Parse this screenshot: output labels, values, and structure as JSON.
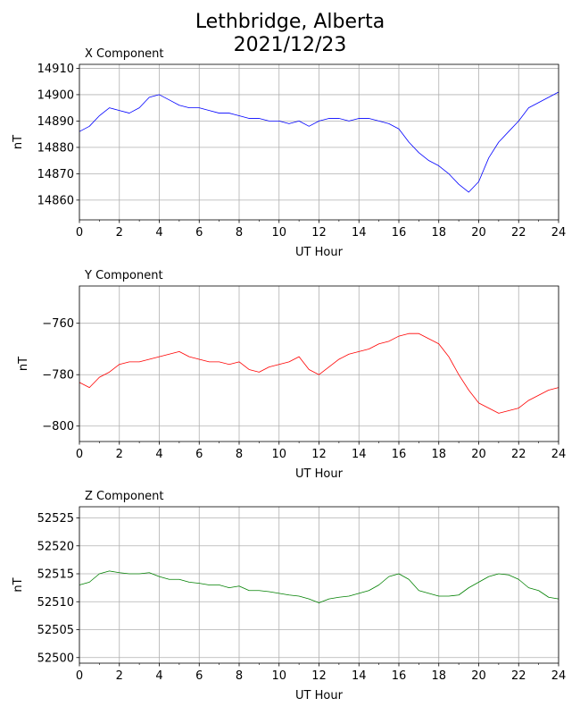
{
  "title_line1": "Lethbridge, Alberta",
  "title_line2": "2021/12/23",
  "chart_data": [
    {
      "type": "line",
      "title": "X Component",
      "xlabel": "UT Hour",
      "ylabel": "nT",
      "xlim": [
        0,
        24
      ],
      "ylim": [
        14852.5,
        14911.5
      ],
      "xticks": [
        0,
        2,
        4,
        6,
        8,
        10,
        12,
        14,
        16,
        18,
        20,
        22,
        24
      ],
      "yticks": [
        14860,
        14870,
        14880,
        14890,
        14900,
        14910
      ],
      "grid": true,
      "color": "#0000ff",
      "series": [
        {
          "x": [
            0,
            0.5,
            1,
            1.5,
            2,
            2.5,
            3,
            3.5,
            4,
            4.5,
            5,
            5.5,
            6,
            6.5,
            7,
            7.5,
            8,
            8.5,
            9,
            9.5,
            10,
            10.5,
            11,
            11.5,
            12,
            12.5,
            13,
            13.5,
            14,
            14.5,
            15,
            15.5,
            16,
            16.5,
            17,
            17.5,
            18,
            18.5,
            19,
            19.5,
            20,
            20.5,
            21,
            21.5,
            22,
            22.5,
            23,
            23.5,
            24
          ],
          "y": [
            14886,
            14888,
            14892,
            14895,
            14894,
            14893,
            14895,
            14899,
            14900,
            14898,
            14896,
            14895,
            14895,
            14894,
            14893,
            14893,
            14892,
            14891,
            14891,
            14890,
            14890,
            14889,
            14890,
            14888,
            14890,
            14891,
            14891,
            14890,
            14891,
            14891,
            14890,
            14889,
            14887,
            14882,
            14878,
            14875,
            14873,
            14870,
            14866,
            14863,
            14867,
            14876,
            14882,
            14886,
            14890,
            14895,
            14897,
            14899,
            14901
          ]
        }
      ]
    },
    {
      "type": "line",
      "title": "Y Component",
      "xlabel": "UT Hour",
      "ylabel": "nT",
      "xlim": [
        0,
        24
      ],
      "ylim": [
        -806,
        -745.5
      ],
      "xticks": [
        0,
        2,
        4,
        6,
        8,
        10,
        12,
        14,
        16,
        18,
        20,
        22,
        24
      ],
      "yticks": [
        -800,
        -780,
        -760
      ],
      "grid": true,
      "color": "#ff0000",
      "series": [
        {
          "x": [
            0,
            0.5,
            1,
            1.5,
            2,
            2.5,
            3,
            3.5,
            4,
            4.5,
            5,
            5.5,
            6,
            6.5,
            7,
            7.5,
            8,
            8.5,
            9,
            9.5,
            10,
            10.5,
            11,
            11.5,
            12,
            12.5,
            13,
            13.5,
            14,
            14.5,
            15,
            15.5,
            16,
            16.5,
            17,
            17.5,
            18,
            18.5,
            19,
            19.5,
            20,
            20.5,
            21,
            21.5,
            22,
            22.5,
            23,
            23.5,
            24
          ],
          "y": [
            -783,
            -785,
            -781,
            -779,
            -776,
            -775,
            -775,
            -774,
            -773,
            -772,
            -771,
            -773,
            -774,
            -775,
            -775,
            -776,
            -775,
            -778,
            -779,
            -777,
            -776,
            -775,
            -773,
            -778,
            -780,
            -777,
            -774,
            -772,
            -771,
            -770,
            -768,
            -767,
            -765,
            -764,
            -764,
            -766,
            -768,
            -773,
            -780,
            -786,
            -791,
            -793,
            -795,
            -794,
            -793,
            -790,
            -788,
            -786,
            -785
          ]
        }
      ]
    },
    {
      "type": "line",
      "title": "Z Component",
      "xlabel": "UT Hour",
      "ylabel": "nT",
      "xlim": [
        0,
        24
      ],
      "ylim": [
        52499,
        52527
      ],
      "xticks": [
        0,
        2,
        4,
        6,
        8,
        10,
        12,
        14,
        16,
        18,
        20,
        22,
        24
      ],
      "yticks": [
        52500,
        52505,
        52510,
        52515,
        52520,
        52525
      ],
      "grid": true,
      "color": "#008000",
      "series": [
        {
          "x": [
            0,
            0.5,
            1,
            1.5,
            2,
            2.5,
            3,
            3.5,
            4,
            4.5,
            5,
            5.5,
            6,
            6.5,
            7,
            7.5,
            8,
            8.5,
            9,
            9.5,
            10,
            10.5,
            11,
            11.5,
            12,
            12.5,
            13,
            13.5,
            14,
            14.5,
            15,
            15.5,
            16,
            16.5,
            17,
            17.5,
            18,
            18.5,
            19,
            19.5,
            20,
            20.5,
            21,
            21.5,
            22,
            22.5,
            23,
            23.5,
            24
          ],
          "y": [
            52513,
            52513.5,
            52515,
            52515.5,
            52515.2,
            52515,
            52515,
            52515.2,
            52514.5,
            52514,
            52514,
            52513.5,
            52513.3,
            52513,
            52513,
            52512.5,
            52512.8,
            52512,
            52512,
            52511.8,
            52511.5,
            52511.2,
            52511,
            52510.5,
            52509.8,
            52510.5,
            52510.8,
            52511,
            52511.5,
            52512,
            52513,
            52514.5,
            52515,
            52514,
            52512,
            52511.5,
            52511,
            52511,
            52511.2,
            52512.5,
            52513.5,
            52514.5,
            52515,
            52514.8,
            52514,
            52512.5,
            52512,
            52510.8,
            52510.5
          ]
        }
      ]
    }
  ]
}
